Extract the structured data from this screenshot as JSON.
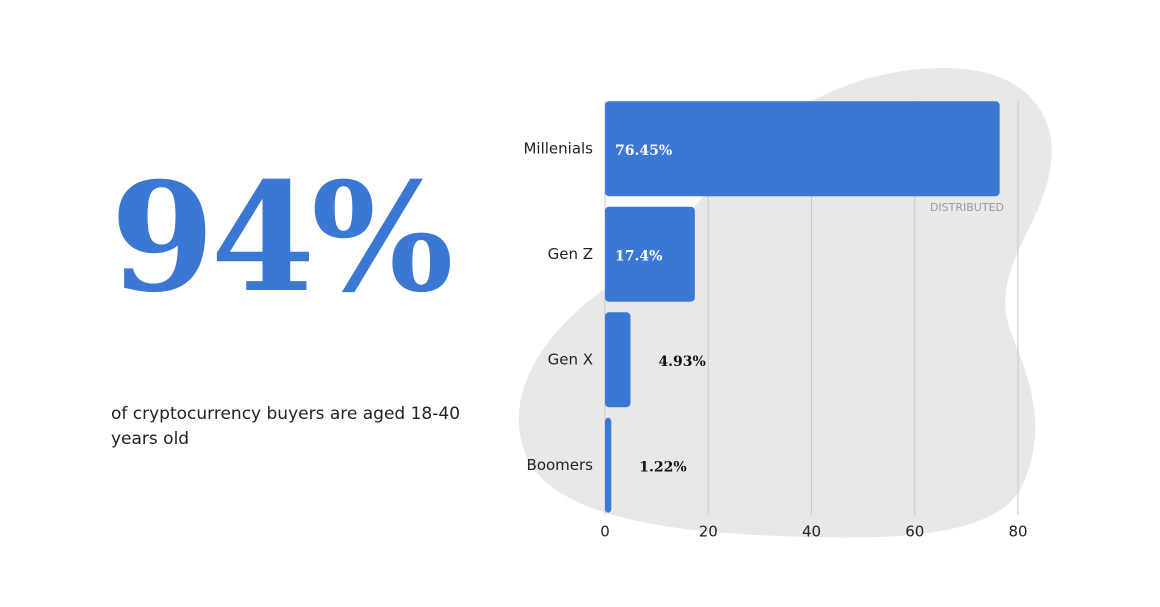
{
  "headline": {
    "stat": "94%",
    "caption": "of cryptocurrency buyers are aged 18-40 years old"
  },
  "chart_data": {
    "type": "hbar",
    "categories": [
      "Millenials",
      "Gen Z",
      "Gen X",
      "Boomers"
    ],
    "values": [
      76.45,
      17.4,
      4.93,
      1.22
    ],
    "value_labels": [
      "76.45%",
      "17.4%",
      "4.93%",
      "1.22%"
    ],
    "color": "#3b78d4",
    "xlim": [
      0,
      80
    ],
    "xticks": [
      0,
      20,
      40,
      60,
      80
    ],
    "grid": true,
    "watermark": "DISTRIBUTED"
  }
}
